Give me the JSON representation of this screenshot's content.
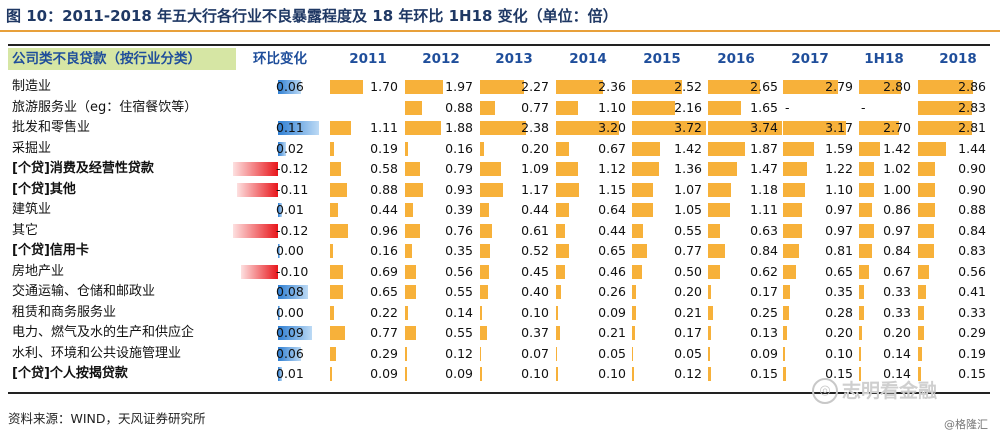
{
  "title": "图 10：2011-2018 年五大行各行业不良暴露程度及 18 年环比 1H18 变化（单位：倍）",
  "header": {
    "row_name": "公司类不良贷款（按行业分类）",
    "change": "环比变化",
    "periods": [
      "2011",
      "2012",
      "2013",
      "2014",
      "2015",
      "2016",
      "2017",
      "1H18",
      "2018"
    ]
  },
  "rows": [
    {
      "label": "制造业",
      "bold": false,
      "change": "0.06",
      "values": [
        "1.70",
        "1.97",
        "2.27",
        "2.36",
        "2.52",
        "2.65",
        "2.79",
        "2.80",
        "2.86"
      ]
    },
    {
      "label": "旅游服务业（eg：住宿餐饮等）",
      "bold": false,
      "change": "",
      "values": [
        "",
        "0.88",
        "0.77",
        "1.10",
        "2.16",
        "1.65",
        "-",
        "-",
        "2.83"
      ]
    },
    {
      "label": "批发和零售业",
      "bold": false,
      "change": "0.11",
      "values": [
        "1.11",
        "1.88",
        "2.38",
        "3.20",
        "3.72",
        "3.74",
        "3.17",
        "2.70",
        "2.81"
      ]
    },
    {
      "label": "采掘业",
      "bold": false,
      "change": "0.02",
      "values": [
        "0.19",
        "0.16",
        "0.20",
        "0.67",
        "1.42",
        "1.87",
        "1.59",
        "1.42",
        "1.44"
      ]
    },
    {
      "label": "[个贷]消费及经营性贷款",
      "bold": true,
      "change": "-0.12",
      "values": [
        "0.58",
        "0.79",
        "1.09",
        "1.12",
        "1.36",
        "1.47",
        "1.22",
        "1.02",
        "0.90"
      ]
    },
    {
      "label": "[个贷]其他",
      "bold": true,
      "change": "-0.11",
      "values": [
        "0.88",
        "0.93",
        "1.17",
        "1.15",
        "1.07",
        "1.18",
        "1.10",
        "1.00",
        "0.90"
      ]
    },
    {
      "label": "建筑业",
      "bold": false,
      "change": "0.01",
      "values": [
        "0.44",
        "0.39",
        "0.44",
        "0.64",
        "1.05",
        "1.11",
        "0.97",
        "0.86",
        "0.88"
      ]
    },
    {
      "label": "其它",
      "bold": false,
      "change": "-0.12",
      "values": [
        "0.96",
        "0.76",
        "0.61",
        "0.44",
        "0.55",
        "0.63",
        "0.97",
        "0.97",
        "0.84"
      ]
    },
    {
      "label": "[个贷]信用卡",
      "bold": true,
      "change": "0.00",
      "values": [
        "0.16",
        "0.35",
        "0.52",
        "0.65",
        "0.77",
        "0.84",
        "0.81",
        "0.84",
        "0.83"
      ]
    },
    {
      "label": "房地产业",
      "bold": false,
      "change": "-0.10",
      "values": [
        "0.69",
        "0.56",
        "0.45",
        "0.46",
        "0.50",
        "0.62",
        "0.65",
        "0.67",
        "0.56"
      ]
    },
    {
      "label": "交通运输、仓储和邮政业",
      "bold": false,
      "change": "0.08",
      "values": [
        "0.65",
        "0.55",
        "0.40",
        "0.26",
        "0.20",
        "0.17",
        "0.35",
        "0.33",
        "0.41"
      ]
    },
    {
      "label": "租赁和商务服务业",
      "bold": false,
      "change": "0.00",
      "values": [
        "0.22",
        "0.14",
        "0.10",
        "0.09",
        "0.21",
        "0.25",
        "0.28",
        "0.33",
        "0.33"
      ]
    },
    {
      "label": "电力、燃气及水的生产和供应企",
      "bold": false,
      "change": "0.09",
      "values": [
        "0.77",
        "0.55",
        "0.37",
        "0.21",
        "0.17",
        "0.13",
        "0.20",
        "0.20",
        "0.29"
      ]
    },
    {
      "label": "水利、环境和公共设施管理业",
      "bold": false,
      "change": "0.06",
      "values": [
        "0.29",
        "0.12",
        "0.07",
        "0.05",
        "0.05",
        "0.09",
        "0.10",
        "0.14",
        "0.19"
      ]
    },
    {
      "label": "[个贷]个人按揭贷款",
      "bold": true,
      "change": "0.01",
      "values": [
        "0.09",
        "0.09",
        "0.10",
        "0.10",
        "0.12",
        "0.15",
        "0.15",
        "0.14",
        "0.15"
      ]
    }
  ],
  "footer": {
    "source": "资料来源：WIND，天风证券研究所",
    "watermark": "志明看金融",
    "watermark2": "@格隆汇"
  },
  "colors": {
    "value_bar": "#f7b13a",
    "positive_change": "#2f7fd3",
    "negative_change": "#e8161b",
    "header_text": "#1f4e9b",
    "header_bg": "#d6e6a4",
    "rule": "#e8a03a"
  }
}
